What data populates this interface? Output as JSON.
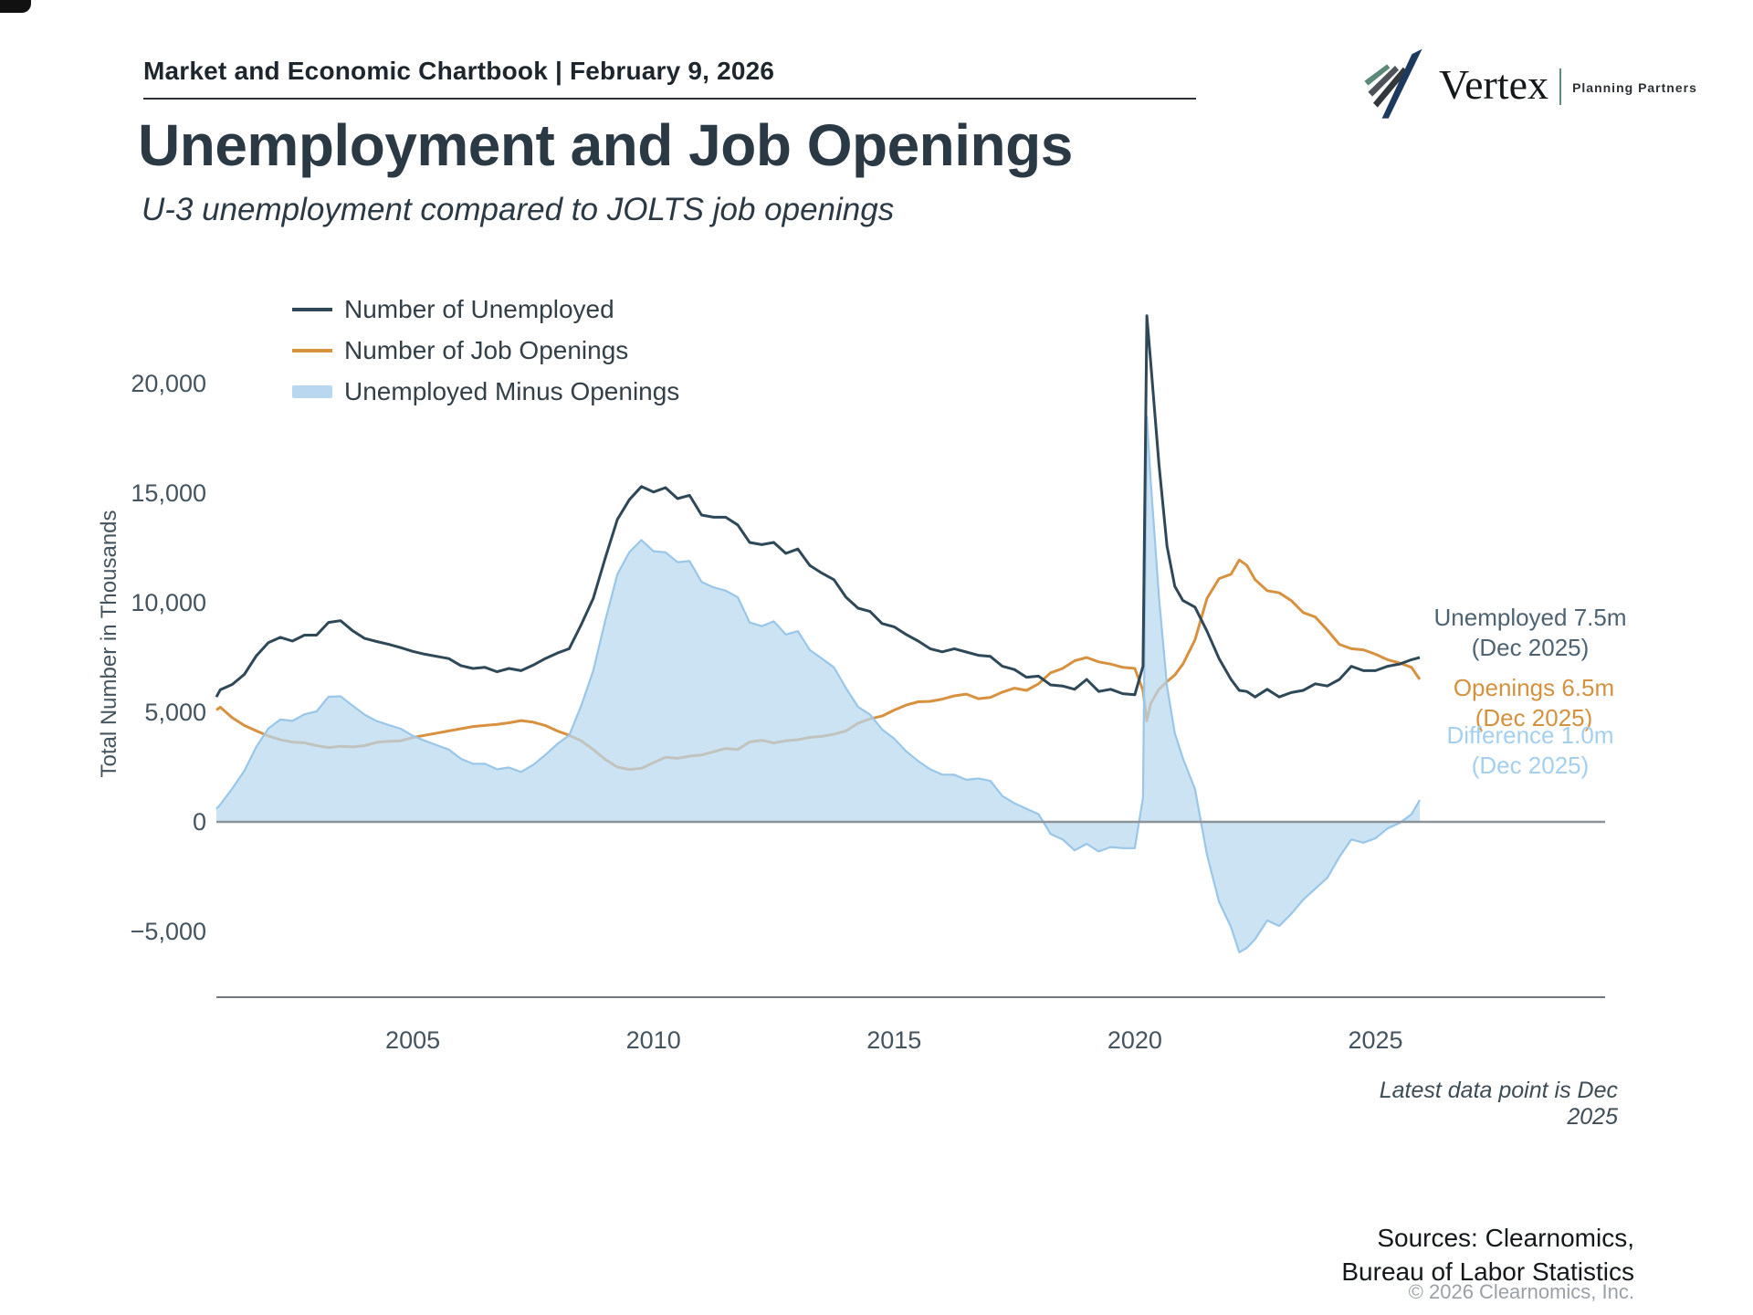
{
  "header": {
    "chartbook_title": "Market and Economic Chartbook | February 9, 2026"
  },
  "logo": {
    "brand": "Vertex",
    "tagline": "Planning Partners"
  },
  "title": "Unemployment and Job Openings",
  "subtitle": "U-3 unemployment compared to JOLTS job openings",
  "legend": [
    {
      "label": "Number of Unemployed",
      "color": "#2f4858",
      "type": "line"
    },
    {
      "label": "Number of Job Openings",
      "color": "#d7913f",
      "type": "line"
    },
    {
      "label": "Unemployed Minus Openings",
      "color": "#b9d8ef",
      "type": "area"
    }
  ],
  "annotations": {
    "unemployed": {
      "line1": "Unemployed 7.5m",
      "line2": "(Dec 2025)"
    },
    "openings": {
      "line1": "Openings 6.5m",
      "line2": "(Dec 2025)"
    },
    "difference": {
      "line1": "Difference 1.0m",
      "line2": "(Dec 2025)"
    }
  },
  "footnote": "Latest data point is Dec 2025",
  "sources": {
    "line1": "Sources: Clearnomics,",
    "line2": "Bureau of Labor Statistics",
    "copyright": "© 2026 Clearnomics, Inc."
  },
  "colors": {
    "unemployed_line": "#2f4858",
    "openings_line": "#d7913f",
    "difference_fill": "rgba(185,216,240,0.72)",
    "difference_edge": "#9ac6e8",
    "zero_line": "#8d9499",
    "x_axis_line": "#70787d",
    "tick_text": "#44545f"
  },
  "chart_data": {
    "type": "line",
    "title": "Unemployment and Job Openings",
    "subtitle": "U-3 unemployment compared to JOLTS job openings",
    "ylabel": "Total Number in Thousands",
    "xlabel": "",
    "units": "thousands of persons / openings, monthly",
    "x_range": [
      2000.92,
      2025.92
    ],
    "ylim": [
      -7500,
      24000
    ],
    "grid": false,
    "legend_position": "top-left",
    "y_ticks": [
      {
        "v": 20000,
        "label": "20,000"
      },
      {
        "v": 15000,
        "label": "15,000"
      },
      {
        "v": 10000,
        "label": "10,000"
      },
      {
        "v": 5000,
        "label": "5,000"
      },
      {
        "v": 0,
        "label": "0"
      },
      {
        "v": -5000,
        "label": "−5,000"
      }
    ],
    "x_ticks": [
      {
        "v": 2005,
        "label": "2005"
      },
      {
        "v": 2010,
        "label": "2010"
      },
      {
        "v": 2015,
        "label": "2015"
      },
      {
        "v": 2020,
        "label": "2020"
      },
      {
        "v": 2025,
        "label": "2025"
      }
    ],
    "series_names": [
      "Number of Unemployed",
      "Number of Job Openings",
      "Unemployed Minus Openings"
    ],
    "note": "points are [decimal_year, unemployed, job_openings]; difference series = unemployed - openings",
    "points": [
      [
        2000.92,
        5700,
        5100
      ],
      [
        2001.0,
        6023,
        5234
      ],
      [
        2001.25,
        6270,
        4750
      ],
      [
        2001.5,
        6730,
        4400
      ],
      [
        2001.75,
        7580,
        4150
      ],
      [
        2002.0,
        8180,
        3920
      ],
      [
        2002.25,
        8420,
        3750
      ],
      [
        2002.5,
        8250,
        3640
      ],
      [
        2002.75,
        8520,
        3610
      ],
      [
        2003.0,
        8520,
        3480
      ],
      [
        2003.25,
        9100,
        3390
      ],
      [
        2003.5,
        9180,
        3450
      ],
      [
        2003.75,
        8720,
        3420
      ],
      [
        2004.0,
        8370,
        3480
      ],
      [
        2004.25,
        8230,
        3630
      ],
      [
        2004.5,
        8100,
        3680
      ],
      [
        2004.75,
        7950,
        3700
      ],
      [
        2005.0,
        7780,
        3850
      ],
      [
        2005.25,
        7650,
        3950
      ],
      [
        2005.5,
        7550,
        4050
      ],
      [
        2005.75,
        7450,
        4150
      ],
      [
        2006.0,
        7130,
        4250
      ],
      [
        2006.25,
        7000,
        4350
      ],
      [
        2006.5,
        7050,
        4400
      ],
      [
        2006.75,
        6850,
        4450
      ],
      [
        2007.0,
        7000,
        4520
      ],
      [
        2007.25,
        6900,
        4620
      ],
      [
        2007.5,
        7150,
        4550
      ],
      [
        2007.75,
        7450,
        4400
      ],
      [
        2008.0,
        7700,
        4150
      ],
      [
        2008.25,
        7900,
        3950
      ],
      [
        2008.5,
        9000,
        3700
      ],
      [
        2008.75,
        10200,
        3300
      ],
      [
        2009.0,
        12050,
        2850
      ],
      [
        2009.25,
        13800,
        2500
      ],
      [
        2009.5,
        14700,
        2390
      ],
      [
        2009.75,
        15300,
        2440
      ],
      [
        2010.0,
        15050,
        2700
      ],
      [
        2010.25,
        15250,
        2950
      ],
      [
        2010.5,
        14750,
        2900
      ],
      [
        2010.75,
        14900,
        3000
      ],
      [
        2011.0,
        14000,
        3050
      ],
      [
        2011.25,
        13900,
        3200
      ],
      [
        2011.5,
        13900,
        3350
      ],
      [
        2011.75,
        13550,
        3300
      ],
      [
        2012.0,
        12750,
        3650
      ],
      [
        2012.25,
        12650,
        3720
      ],
      [
        2012.5,
        12750,
        3600
      ],
      [
        2012.75,
        12250,
        3700
      ],
      [
        2013.0,
        12450,
        3750
      ],
      [
        2013.25,
        11700,
        3860
      ],
      [
        2013.5,
        11350,
        3900
      ],
      [
        2013.75,
        11050,
        4000
      ],
      [
        2014.0,
        10250,
        4150
      ],
      [
        2014.25,
        9750,
        4500
      ],
      [
        2014.5,
        9600,
        4700
      ],
      [
        2014.75,
        9050,
        4830
      ],
      [
        2015.0,
        8900,
        5100
      ],
      [
        2015.25,
        8550,
        5330
      ],
      [
        2015.5,
        8250,
        5480
      ],
      [
        2015.75,
        7900,
        5500
      ],
      [
        2016.0,
        7760,
        5600
      ],
      [
        2016.25,
        7900,
        5750
      ],
      [
        2016.5,
        7750,
        5830
      ],
      [
        2016.75,
        7600,
        5620
      ],
      [
        2017.0,
        7550,
        5680
      ],
      [
        2017.25,
        7100,
        5920
      ],
      [
        2017.5,
        6950,
        6100
      ],
      [
        2017.75,
        6600,
        6000
      ],
      [
        2018.0,
        6650,
        6300
      ],
      [
        2018.25,
        6250,
        6800
      ],
      [
        2018.5,
        6200,
        7000
      ],
      [
        2018.75,
        6050,
        7350
      ],
      [
        2019.0,
        6500,
        7500
      ],
      [
        2019.25,
        5950,
        7300
      ],
      [
        2019.5,
        6050,
        7200
      ],
      [
        2019.75,
        5850,
        7050
      ],
      [
        2020.0,
        5800,
        7000
      ],
      [
        2020.17,
        7100,
        6000
      ],
      [
        2020.25,
        23090,
        4600
      ],
      [
        2020.33,
        20980,
        5400
      ],
      [
        2020.5,
        16340,
        6050
      ],
      [
        2020.67,
        12580,
        6400
      ],
      [
        2020.83,
        10750,
        6700
      ],
      [
        2021.0,
        10100,
        7200
      ],
      [
        2021.25,
        9800,
        8300
      ],
      [
        2021.5,
        8700,
        10200
      ],
      [
        2021.75,
        7450,
        11100
      ],
      [
        2022.0,
        6500,
        11300
      ],
      [
        2022.17,
        6000,
        11950
      ],
      [
        2022.33,
        5950,
        11700
      ],
      [
        2022.5,
        5700,
        11050
      ],
      [
        2022.75,
        6050,
        10550
      ],
      [
        2023.0,
        5700,
        10450
      ],
      [
        2023.25,
        5900,
        10100
      ],
      [
        2023.5,
        6000,
        9550
      ],
      [
        2023.75,
        6300,
        9350
      ],
      [
        2024.0,
        6200,
        8750
      ],
      [
        2024.25,
        6500,
        8100
      ],
      [
        2024.5,
        7100,
        7900
      ],
      [
        2024.75,
        6900,
        7850
      ],
      [
        2025.0,
        6900,
        7650
      ],
      [
        2025.25,
        7100,
        7400
      ],
      [
        2025.5,
        7200,
        7250
      ],
      [
        2025.75,
        7400,
        7050
      ],
      [
        2025.92,
        7500,
        6500
      ]
    ],
    "latest": {
      "date": "Dec 2025",
      "unemployed": 7500,
      "openings": 6500,
      "difference": 1000
    }
  }
}
